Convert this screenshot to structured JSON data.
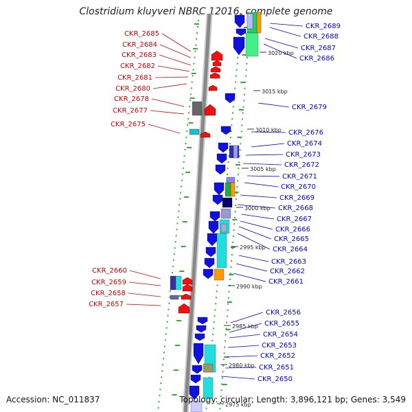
{
  "title": "Clostridium kluyveri NBRC 12016, complete genome",
  "accession": "Accession: NC_011837",
  "topology": "Topology: circular; Length: 3,896,121 bp; Genes: 3,549",
  "colors": {
    "forward_gene": "#ee1111",
    "reverse_gene": "#1111dd",
    "left_label": "#cc0000",
    "right_label": "#0000cc",
    "backbone": "#888888",
    "dotted_guide": "#33aa33"
  },
  "kbp_ticks": [
    "3020 kbp",
    "3015 kbp",
    "3010 kbp",
    "3005 kbp",
    "3000 kbp",
    "2995 kbp",
    "2990 kbp",
    "2985 kbp",
    "2980 kbp",
    "2975 kbp"
  ],
  "left_labels": [
    "CKR_2685",
    "CKR_2684",
    "CKR_2683",
    "CKR_2682",
    "CKR_2681",
    "CKR_2680",
    "CKR_2678",
    "CKR_2677",
    "CKR_2675",
    "CKR_2660",
    "CKR_2659",
    "CKR_2658",
    "CKR_2657"
  ],
  "right_labels": [
    "CKR_2689",
    "CKR_2688",
    "CKR_2687",
    "CKR_2686",
    "CKR_2679",
    "CKR_2676",
    "CKR_2674",
    "CKR_2673",
    "CKR_2672",
    "CKR_2671",
    "CKR_2670",
    "CKR_2669",
    "CKR_2668",
    "CKR_2667",
    "CKR_2666",
    "CKR_2665",
    "CKR_2664",
    "CKR_2663",
    "CKR_2662",
    "CKR_2661",
    "CKR_2656",
    "CKR_2655",
    "CKR_2654",
    "CKR_2653",
    "CKR_2652",
    "CKR_2651",
    "CKR_2650"
  ]
}
